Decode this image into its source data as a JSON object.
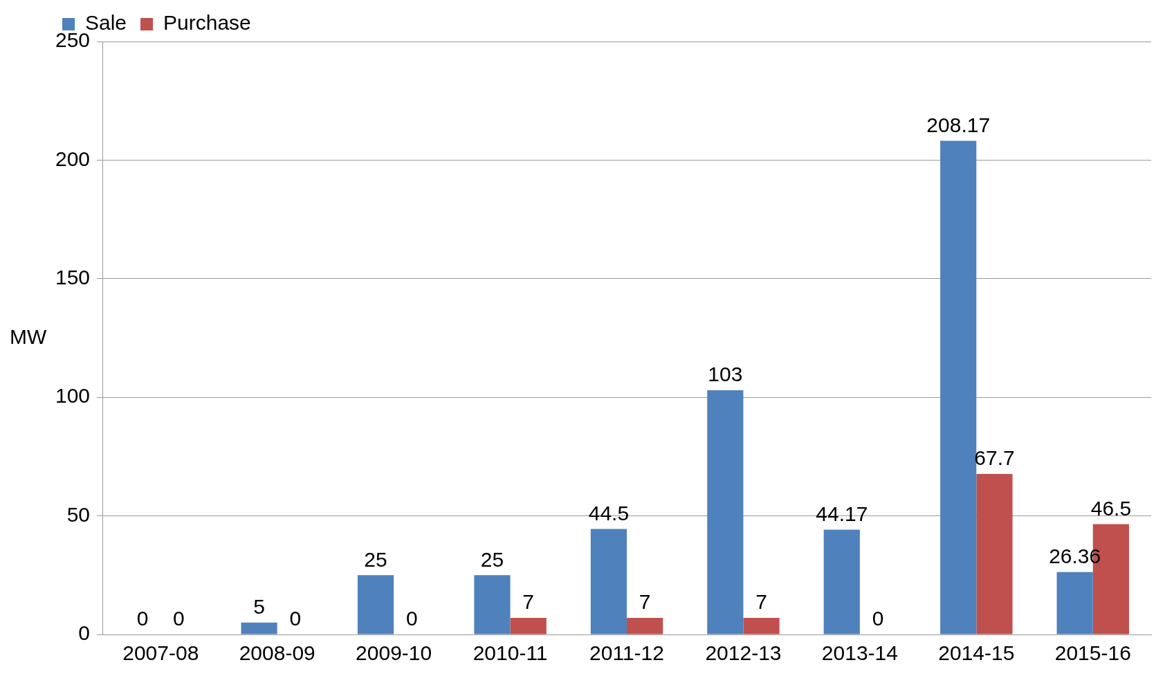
{
  "chart_data": {
    "type": "bar",
    "ylabel": "MW",
    "categories": [
      "2007-08",
      "2008-09",
      "2009-10",
      "2010-11",
      "2011-12",
      "2012-13",
      "2013-14",
      "2014-15",
      "2015-16"
    ],
    "series": [
      {
        "name": "Sale",
        "color": "#4f81bd",
        "values": [
          0,
          5,
          25,
          25,
          44.5,
          103,
          44.17,
          208.17,
          26.36
        ]
      },
      {
        "name": "Purchase",
        "color": "#c0504d",
        "values": [
          0,
          0,
          0,
          7,
          7,
          7,
          0,
          67.7,
          46.5
        ]
      }
    ],
    "ylim": [
      0,
      250
    ],
    "yticks": [
      0,
      50,
      100,
      150,
      200,
      250
    ],
    "grid": "y",
    "legend": "top left",
    "data_labels": true
  }
}
